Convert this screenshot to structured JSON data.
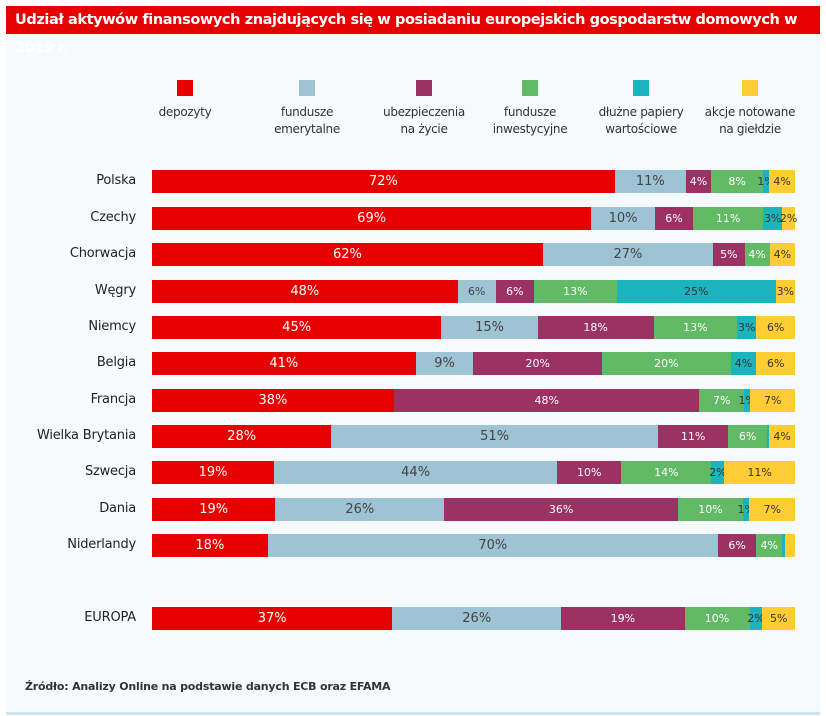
{
  "title": "Udział aktywów finansowych znajdujących się w posiadaniu europejskich gospodarstw domowych w 2019 r.",
  "source": "Źródło: Analizy Online na podstawie danych ECB oraz EFAMA",
  "colors": {
    "title_bg": "#e60000",
    "depozyty": "#e60000",
    "fundusze_emerytalne": "#9dc3d4",
    "ubezpieczenia": "#9c3263",
    "fundusze_inwestycyjne": "#62b966",
    "dluzne": "#1bb3bd",
    "akcje": "#ffcc33"
  },
  "chart_data": {
    "type": "bar",
    "orientation": "horizontal",
    "stacked": true,
    "title": "Udział aktywów finansowych znajdujących się w posiadaniu europejskich gospodarstw domowych w 2019 r.",
    "xlabel": "",
    "ylabel": "",
    "xlim": [
      0,
      100
    ],
    "grid": false,
    "legend_position": "top",
    "categories": [
      "Polska",
      "Czechy",
      "Chorwacja",
      "Węgry",
      "Niemcy",
      "Belgia",
      "Francja",
      "Wielka Brytania",
      "Szwecja",
      "Dania",
      "Niderlandy",
      "EUROPA"
    ],
    "series": [
      {
        "name": "depozyty",
        "color": "#e60000",
        "text_color": "#ffffff",
        "values": [
          72,
          69,
          62,
          48,
          45,
          41,
          38,
          28,
          19,
          19,
          18,
          37
        ],
        "labels": [
          "72%",
          "69%",
          "62%",
          "48%",
          "45%",
          "41%",
          "38%",
          "28%",
          "19%",
          "19%",
          "18%",
          "37%"
        ]
      },
      {
        "name": "fundusze\nemerytalne",
        "color": "#9dc3d4",
        "text_color": "#444444",
        "values": [
          11,
          10,
          27,
          6,
          15,
          9,
          0,
          51,
          44,
          26,
          70,
          26
        ],
        "labels": [
          "11%",
          "10%",
          "27%",
          "6%",
          "15%",
          "9%",
          "",
          "51%",
          "44%",
          "26%",
          "70%",
          "26%"
        ]
      },
      {
        "name": "ubezpieczenia\nna życie",
        "color": "#9c3263",
        "text_color": "#ffffff",
        "values": [
          4,
          6,
          5,
          6,
          18,
          20,
          48,
          11,
          10,
          36,
          6,
          19
        ],
        "labels": [
          "4%",
          "6%",
          "5%",
          "6%",
          "18%",
          "20%",
          "48%",
          "11%",
          "10%",
          "36%",
          "6%",
          "19%"
        ]
      },
      {
        "name": "fundusze\ninwestycyjne",
        "color": "#62b966",
        "text_color": "#ffffff",
        "values": [
          8,
          11,
          4,
          13,
          13,
          20,
          7,
          6,
          14,
          10,
          4,
          10
        ],
        "labels": [
          "8%",
          "11%",
          "4%",
          "13%",
          "13%",
          "20%",
          "7%",
          "6%",
          "14%",
          "10%",
          "4%",
          "10%"
        ]
      },
      {
        "name": "dłużne papiery\nwartościowe",
        "color": "#1bb3bd",
        "text_color": "#333333",
        "values": [
          1,
          3,
          0,
          25,
          3,
          4,
          1,
          0.4,
          2,
          1,
          0.5,
          2
        ],
        "labels": [
          "1%",
          "3%",
          "",
          "25%",
          "3%",
          "4%",
          "1%",
          "",
          "2%",
          "1%",
          "",
          "2%"
        ]
      },
      {
        "name": "akcje notowane\nna giełdzie",
        "color": "#ffcc33",
        "text_color": "#333333",
        "values": [
          4,
          2,
          4,
          3,
          6,
          6,
          7,
          4,
          11,
          7,
          1.5,
          5
        ],
        "labels": [
          "4%",
          "2%",
          "4%",
          "3%",
          "6%",
          "6%",
          "7%",
          "4%",
          "11%",
          "7%",
          "",
          "5%"
        ]
      }
    ]
  }
}
